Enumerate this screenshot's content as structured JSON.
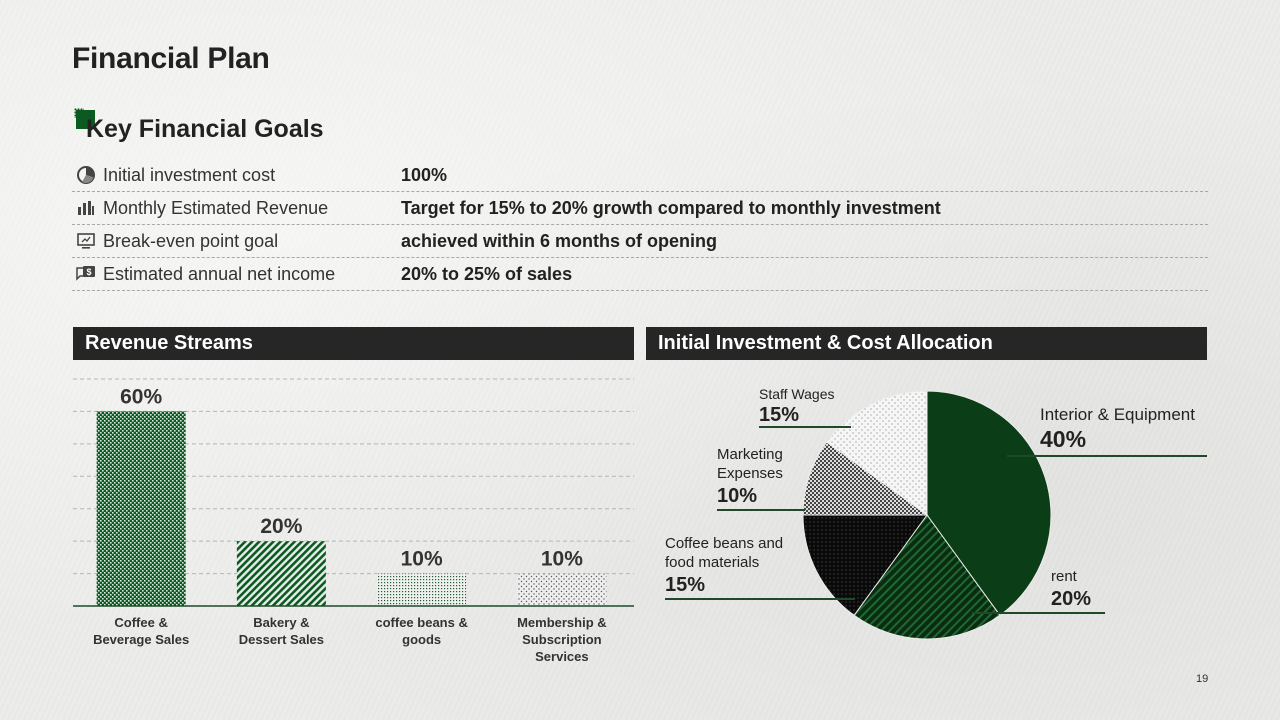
{
  "title": "Financial Plan",
  "goals": {
    "heading": "Key Financial Goals",
    "rows": [
      {
        "icon": "pie-chart-icon",
        "label": "Initial investment cost",
        "value": "100%"
      },
      {
        "icon": "bar-chart-icon",
        "label": "Monthly Estimated Revenue",
        "value": "Target for 15% to 20% growth compared to monthly investment"
      },
      {
        "icon": "monitor-icon",
        "label": "Break-even point goal",
        "value": "achieved within 6 months of opening"
      },
      {
        "icon": "dollar-chat-icon",
        "label": "Estimated annual net income",
        "value": "20% to 25% of sales"
      }
    ]
  },
  "revenue": {
    "heading": "Revenue Streams"
  },
  "investment": {
    "heading": "Initial Investment & Cost Allocation"
  },
  "colors": {
    "dark_green": "#0b3d17",
    "green": "#0b5a22",
    "header_bg": "#262626"
  },
  "chart_data": [
    {
      "type": "bar",
      "title": "Revenue Streams",
      "categories": [
        "Coffee & Beverage Sales",
        "Bakery & Dessert Sales",
        "coffee beans & goods",
        "Membership & Subscription Services"
      ],
      "values": [
        60,
        20,
        10,
        10
      ],
      "value_labels": [
        "60%",
        "20%",
        "10%",
        "10%"
      ],
      "ylim": [
        0,
        70
      ],
      "grid": true
    },
    {
      "type": "pie",
      "title": "Initial Investment & Cost Allocation",
      "slices": [
        {
          "label": "Interior & Equipment",
          "value": 40,
          "value_label": "40%"
        },
        {
          "label": "rent",
          "value": 20,
          "value_label": "20%"
        },
        {
          "label": "Coffee beans and food materials",
          "value": 15,
          "value_label": "15%"
        },
        {
          "label": "Marketing Expenses",
          "value": 10,
          "value_label": "10%"
        },
        {
          "label": "Staff Wages",
          "value": 15,
          "value_label": "15%"
        }
      ]
    }
  ],
  "page_number": "19"
}
